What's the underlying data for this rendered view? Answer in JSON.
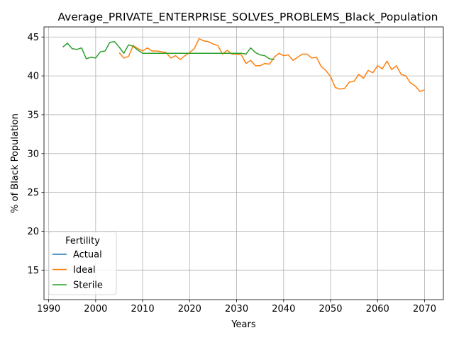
{
  "chart_data": {
    "type": "line",
    "title": "Average_PRIVATE_ENTERPRISE_SOLVES_PROBLEMS_Black_Population",
    "xlabel": "Years",
    "ylabel": "% of Black Population",
    "xlim": [
      1989,
      2074
    ],
    "ylim": [
      11.2,
      46.3
    ],
    "xticks": [
      1990,
      2000,
      2010,
      2020,
      2030,
      2040,
      2050,
      2060,
      2070
    ],
    "yticks": [
      15,
      20,
      25,
      30,
      35,
      40,
      45
    ],
    "grid": true,
    "legend": {
      "title": "Fertility",
      "position": "lower-left"
    },
    "series": [
      {
        "name": "Actual",
        "color": "#1f77b4",
        "x": [],
        "y": []
      },
      {
        "name": "Ideal",
        "color": "#ff7f0e",
        "x": [
          2005,
          2006,
          2007,
          2008,
          2009,
          2010,
          2011,
          2012,
          2013,
          2014,
          2015,
          2016,
          2017,
          2018,
          2019,
          2020,
          2021,
          2022,
          2023,
          2024,
          2025,
          2026,
          2027,
          2028,
          2029,
          2030,
          2031,
          2032,
          2033,
          2034,
          2035,
          2036,
          2037,
          2038,
          2039,
          2040,
          2041,
          2042,
          2043,
          2044,
          2045,
          2046,
          2047,
          2048,
          2049,
          2050,
          2051,
          2052,
          2053,
          2054,
          2055,
          2056,
          2057,
          2058,
          2059,
          2060,
          2061,
          2062,
          2063,
          2064,
          2065,
          2066,
          2067,
          2068,
          2069,
          2070
        ],
        "y": [
          43.0,
          42.3,
          42.5,
          43.9,
          43.5,
          43.2,
          43.6,
          43.2,
          43.2,
          43.1,
          43.0,
          42.3,
          42.6,
          42.1,
          42.6,
          43.0,
          43.5,
          44.8,
          44.5,
          44.4,
          44.1,
          43.9,
          42.8,
          43.3,
          42.8,
          42.8,
          42.7,
          41.6,
          42.0,
          41.3,
          41.3,
          41.6,
          41.5,
          42.4,
          42.9,
          42.6,
          42.7,
          42.0,
          42.4,
          42.8,
          42.8,
          42.3,
          42.4,
          41.2,
          40.7,
          39.9,
          38.5,
          38.3,
          38.4,
          39.2,
          39.3,
          40.2,
          39.7,
          40.7,
          40.4,
          41.3,
          40.9,
          41.9,
          40.8,
          41.3,
          40.2,
          40.0,
          39.1,
          38.7,
          38.0,
          38.2
        ]
      },
      {
        "name": "Sterile",
        "color": "#2ca02c",
        "x": [
          1993,
          1994,
          1995,
          1996,
          1997,
          1998,
          1999,
          2000,
          2001,
          2002,
          2003,
          2004,
          2005,
          2006,
          2007,
          2008,
          2009,
          2010,
          2011,
          2012,
          2013,
          2014,
          2015,
          2016,
          2017,
          2018,
          2019,
          2020,
          2021,
          2022,
          2023,
          2024,
          2025,
          2026,
          2027,
          2028,
          2029,
          2030,
          2031,
          2032,
          2033,
          2034,
          2035,
          2036,
          2037,
          2038
        ],
        "y": [
          43.7,
          44.2,
          43.5,
          43.4,
          43.6,
          42.2,
          42.4,
          42.3,
          43.1,
          43.2,
          44.3,
          44.4,
          43.7,
          42.9,
          44.0,
          43.8,
          43.3,
          42.9,
          42.9,
          42.9,
          42.9,
          42.9,
          42.9,
          42.9,
          42.9,
          42.9,
          42.9,
          42.9,
          42.9,
          42.9,
          42.9,
          42.9,
          42.9,
          42.9,
          42.9,
          42.9,
          42.9,
          42.9,
          42.9,
          42.8,
          43.6,
          43.0,
          42.7,
          42.6,
          42.2,
          42.1
        ]
      }
    ]
  }
}
